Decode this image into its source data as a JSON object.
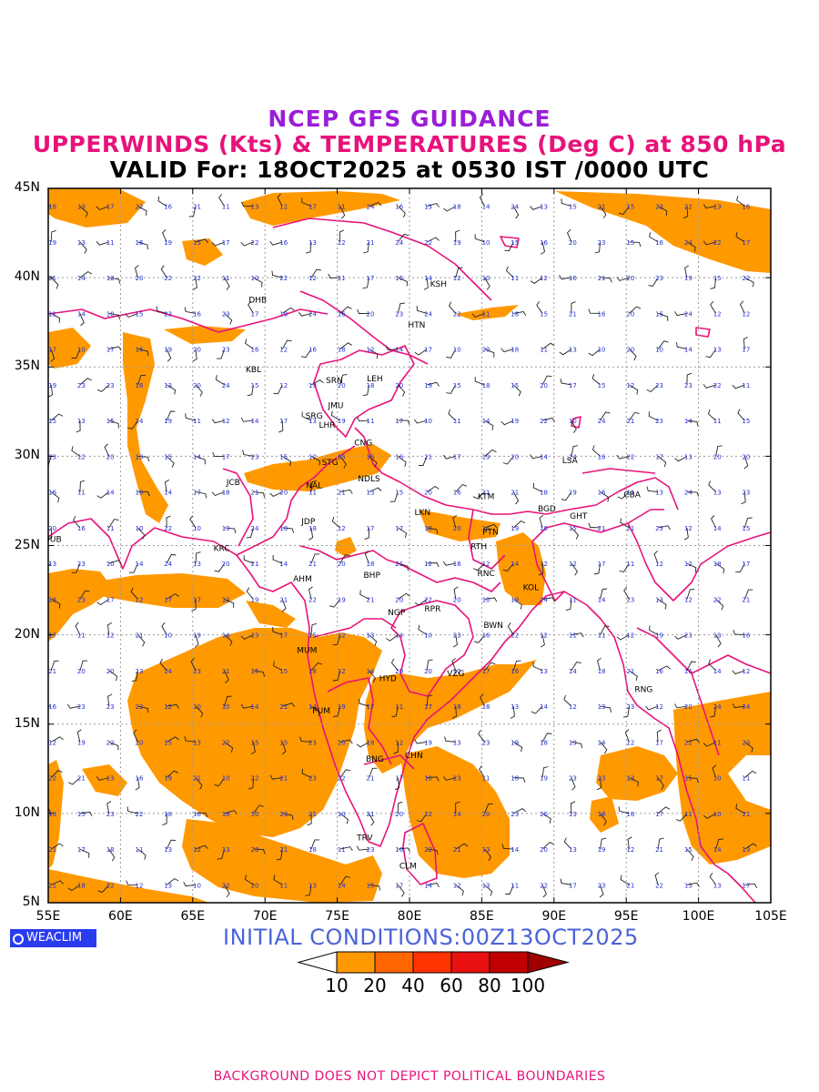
{
  "title": {
    "line1": "NCEP GFS GUIDANCE",
    "line2": "UPPERWINDS (Kts) & TEMPERATURES (Deg C) at 850 hPa",
    "line3": "VALID For: 18OCT2025 at 0530 IST /0000 UTC"
  },
  "colors": {
    "line1": "#9a1ed8",
    "line2": "#e8127a",
    "boundary": "#e8127a",
    "temperature_text": "#2430d0",
    "logo_bg": "#2a3cf0",
    "initial_text": "#4a63d8",
    "footer": "#e8127a",
    "shade_10_20": "#ff9900"
  },
  "axes": {
    "x_labels": [
      "55E",
      "60E",
      "65E",
      "70E",
      "75E",
      "80E",
      "85E",
      "90E",
      "95E",
      "100E",
      "105E"
    ],
    "y_labels": [
      "45N",
      "40N",
      "35N",
      "30N",
      "25N",
      "20N",
      "15N",
      "10N",
      "5N"
    ],
    "lon_range": [
      55,
      105
    ],
    "lat_range": [
      5,
      45
    ]
  },
  "stations": [
    {
      "code": "KSH",
      "lon": 82.0,
      "lat": 39.5
    },
    {
      "code": "DHB",
      "lon": 69.5,
      "lat": 38.6
    },
    {
      "code": "HTN",
      "lon": 80.5,
      "lat": 37.2
    },
    {
      "code": "KBL",
      "lon": 69.2,
      "lat": 34.7
    },
    {
      "code": "SRN",
      "lon": 74.8,
      "lat": 34.1
    },
    {
      "code": "LEH",
      "lon": 77.6,
      "lat": 34.2
    },
    {
      "code": "JMU",
      "lon": 74.9,
      "lat": 32.7
    },
    {
      "code": "SRG",
      "lon": 73.4,
      "lat": 32.1
    },
    {
      "code": "LHR",
      "lon": 74.3,
      "lat": 31.6
    },
    {
      "code": "CNG",
      "lon": 76.8,
      "lat": 30.6
    },
    {
      "code": "LSA",
      "lon": 91.1,
      "lat": 29.6
    },
    {
      "code": "STG",
      "lon": 74.5,
      "lat": 29.5
    },
    {
      "code": "NDLS",
      "lon": 77.2,
      "lat": 28.6
    },
    {
      "code": "JCB",
      "lon": 67.8,
      "lat": 28.4
    },
    {
      "code": "NAL",
      "lon": 73.4,
      "lat": 28.2
    },
    {
      "code": "CBA",
      "lon": 95.4,
      "lat": 27.7
    },
    {
      "code": "KTM",
      "lon": 85.3,
      "lat": 27.6
    },
    {
      "code": "BGD",
      "lon": 89.5,
      "lat": 26.9
    },
    {
      "code": "GHT",
      "lon": 91.7,
      "lat": 26.5
    },
    {
      "code": "LKN",
      "lon": 80.9,
      "lat": 26.7
    },
    {
      "code": "JDP",
      "lon": 73.0,
      "lat": 26.2
    },
    {
      "code": "PTN",
      "lon": 85.6,
      "lat": 25.6
    },
    {
      "code": "DUB",
      "lon": 55.3,
      "lat": 25.2
    },
    {
      "code": "KRC",
      "lon": 67.0,
      "lat": 24.7
    },
    {
      "code": "RTH",
      "lon": 84.8,
      "lat": 24.8
    },
    {
      "code": "BHP",
      "lon": 77.4,
      "lat": 23.2
    },
    {
      "code": "AHM",
      "lon": 72.6,
      "lat": 23.0
    },
    {
      "code": "RNC",
      "lon": 85.3,
      "lat": 23.3
    },
    {
      "code": "KOL",
      "lon": 88.4,
      "lat": 22.5
    },
    {
      "code": "NGP",
      "lon": 79.1,
      "lat": 21.1
    },
    {
      "code": "RPR",
      "lon": 81.6,
      "lat": 21.3
    },
    {
      "code": "BWN",
      "lon": 85.8,
      "lat": 20.4
    },
    {
      "code": "MUM",
      "lon": 72.9,
      "lat": 19.0
    },
    {
      "code": "HYD",
      "lon": 78.5,
      "lat": 17.4
    },
    {
      "code": "VZG",
      "lon": 83.2,
      "lat": 17.7
    },
    {
      "code": "RNG",
      "lon": 96.2,
      "lat": 16.8
    },
    {
      "code": "PUM",
      "lon": 73.9,
      "lat": 15.6
    },
    {
      "code": "CHN",
      "lon": 80.3,
      "lat": 13.1
    },
    {
      "code": "BNG",
      "lon": 77.6,
      "lat": 12.9
    },
    {
      "code": "TRV",
      "lon": 76.9,
      "lat": 8.5
    },
    {
      "code": "CLM",
      "lon": 79.9,
      "lat": 6.9
    }
  ],
  "initial_conditions": "INITIAL  CONDITIONS:00Z13OCT2025",
  "logo_text": "WEACLIM",
  "legend": {
    "labels": [
      "10",
      "20",
      "40",
      "60",
      "80",
      "100"
    ],
    "colors": [
      "#ffffff",
      "#ff9900",
      "#ff6600",
      "#ff3300",
      "#e81010",
      "#c00000",
      "#a00000"
    ]
  },
  "footer": "BACKGROUND DOES NOT DEPICT POLITICAL BOUNDARIES"
}
